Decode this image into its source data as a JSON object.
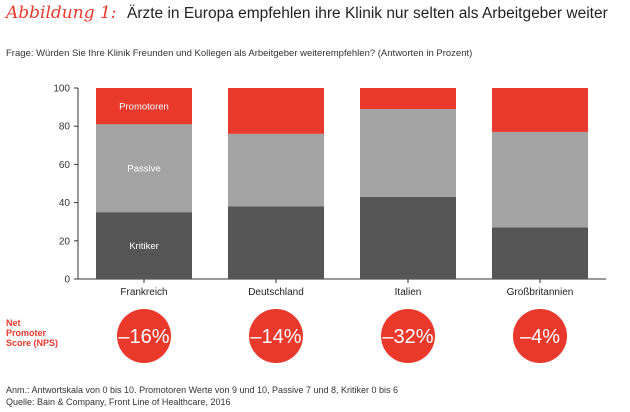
{
  "header": {
    "title_prefix": "Abbildung 1:",
    "title": "Ärzte in Europa empfehlen ihre Klinik nur selten als Arbeitgeber weiter",
    "subtitle": "Frage: Würden Sie Ihre Klinik Freunden und Kollegen als Arbeitgeber weiterempfehlen? (Antworten in Prozent)"
  },
  "colors": {
    "promotoren": "#e8392c",
    "passive": "#a3a3a3",
    "kritiker": "#555555",
    "nps_circle": "#e8392c"
  },
  "chart_data": {
    "type": "bar",
    "stacked": true,
    "categories": [
      "Frankreich",
      "Deutschland",
      "Italien",
      "Großbritannien"
    ],
    "series": [
      {
        "name": "Kritiker",
        "values": [
          35,
          38,
          43,
          27
        ]
      },
      {
        "name": "Passive",
        "values": [
          46,
          38,
          46,
          50
        ]
      },
      {
        "name": "Promotoren",
        "values": [
          19,
          24,
          11,
          23
        ]
      }
    ],
    "ylim": [
      0,
      100
    ],
    "yticks": [
      0,
      20,
      40,
      60,
      80,
      100
    ],
    "grid": false
  },
  "nps": {
    "label_lines": [
      "Net",
      "Promoter",
      "Score (NPS)"
    ],
    "values": [
      "–16%",
      "–14%",
      "–32%",
      "–4%"
    ]
  },
  "footnotes": {
    "note": "Anm.: Antwortskala von 0 bis 10. Promotoren Werte von 9 und 10, Passive 7 und 8, Kritiker 0 bis 6",
    "source": "Quelle: Bain & Company, Front Line of Healthcare, 2016"
  }
}
